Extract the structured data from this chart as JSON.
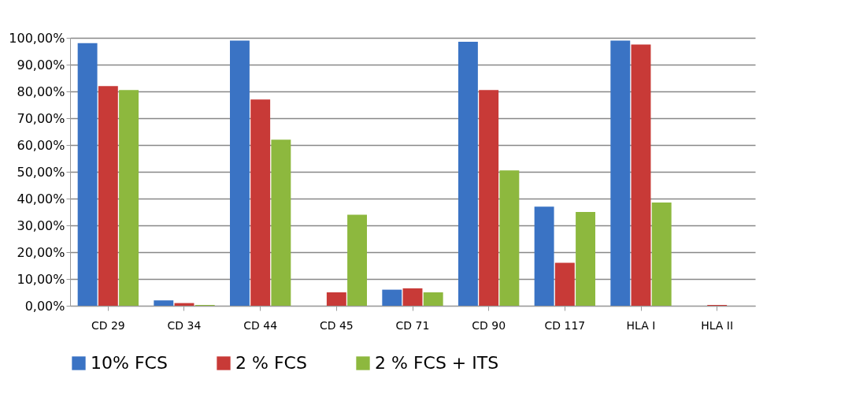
{
  "chart_data": {
    "type": "bar",
    "categories": [
      "CD 29",
      "CD 34",
      "CD 44",
      "CD 45",
      "CD 71",
      "CD 90",
      "CD 117",
      "HLA I",
      "HLA II"
    ],
    "series": [
      {
        "name": "10% FCS",
        "color": "#3a73c4",
        "values": [
          98,
          2,
          99,
          0,
          6,
          98.5,
          37,
          99,
          0
        ]
      },
      {
        "name": "2 % FCS",
        "color": "#c83a37",
        "values": [
          82,
          1,
          77,
          5,
          6.5,
          80.5,
          16,
          97.5,
          0.3
        ]
      },
      {
        "name": "2 % FCS + ITS",
        "color": "#8db83e",
        "values": [
          80.5,
          0.3,
          62,
          34,
          5,
          50.5,
          35,
          38.5,
          0
        ]
      }
    ],
    "ylim": [
      0,
      100
    ],
    "yticks": [
      {
        "value": 0,
        "label": "0,00%"
      },
      {
        "value": 10,
        "label": "10,00%"
      },
      {
        "value": 20,
        "label": "20,00%"
      },
      {
        "value": 30,
        "label": "30,00%"
      },
      {
        "value": 40,
        "label": "40,00%"
      },
      {
        "value": 50,
        "label": "50,00%"
      },
      {
        "value": 60,
        "label": "60,00%"
      },
      {
        "value": 70,
        "label": "70,00%"
      },
      {
        "value": 80,
        "label": "80,00%"
      },
      {
        "value": 90,
        "label": "90,00%"
      },
      {
        "value": 100,
        "label": "100,00%"
      }
    ],
    "grid": "y",
    "legend": "bottom"
  }
}
